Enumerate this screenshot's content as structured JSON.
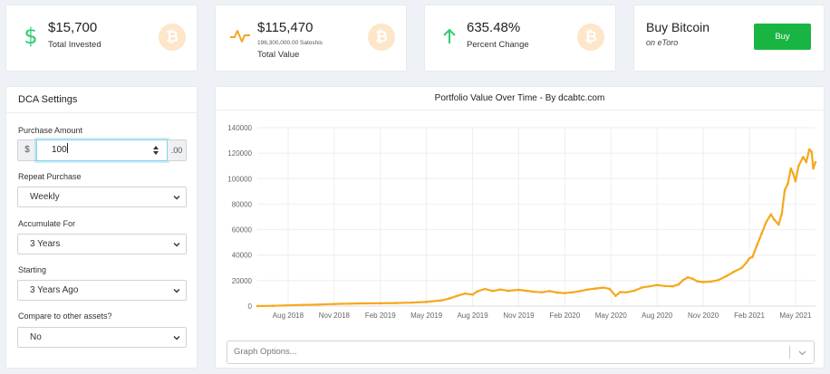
{
  "stats": [
    {
      "value": "$15,700",
      "label": "Total Invested",
      "icon": "dollar-icon",
      "color": "#2ecc71"
    },
    {
      "value": "$115,470",
      "sub": "196,300,000.00 Satoshis",
      "label": "Total Value",
      "icon": "pulse-icon",
      "color": "#f5a623"
    },
    {
      "value": "635.48%",
      "label": "Percent Change",
      "icon": "arrow-up-icon",
      "color": "#2ecc71"
    }
  ],
  "btc_symbol": "₿",
  "buy": {
    "title": "Buy Bitcoin",
    "subtitle": "on eToro",
    "button": "Buy",
    "color": "#19b543"
  },
  "settings": {
    "title": "DCA Settings",
    "purchase_amount_label": "Purchase Amount",
    "currency_prefix": "$",
    "amount": "100",
    "cents_suffix": ".00",
    "repeat_label": "Repeat Purchase",
    "repeat_value": "Weekly",
    "accumulate_label": "Accumulate For",
    "accumulate_value": "3 Years",
    "starting_label": "Starting",
    "starting_value": "3 Years Ago",
    "compare_label": "Compare to other assets?",
    "compare_value": "No"
  },
  "graph_options_placeholder": "Graph Options...",
  "chart_data": {
    "type": "line",
    "title": "Portfolio Value Over Time - By dcabtc.com",
    "ylim": [
      0,
      140000
    ],
    "yticks": [
      0,
      20000,
      40000,
      60000,
      80000,
      100000,
      120000,
      140000
    ],
    "xticks": [
      "Aug 2018",
      "Nov 2018",
      "Feb 2019",
      "May 2019",
      "Aug 2019",
      "Nov 2019",
      "Feb 2020",
      "May 2020",
      "Aug 2020",
      "Nov 2020",
      "Feb 2021",
      "May 2021"
    ],
    "xlim": [
      -2,
      34.3
    ],
    "grid": true,
    "line_color": "#f5a81c",
    "points": [
      [
        -2,
        0
      ],
      [
        -1,
        200
      ],
      [
        0,
        600
      ],
      [
        1,
        900
      ],
      [
        2,
        1200
      ],
      [
        3,
        1600
      ],
      [
        4,
        1900
      ],
      [
        5,
        2100
      ],
      [
        6,
        2200
      ],
      [
        7,
        2400
      ],
      [
        8,
        2700
      ],
      [
        9,
        3300
      ],
      [
        10,
        4500
      ],
      [
        10.5,
        6000
      ],
      [
        11,
        8000
      ],
      [
        11.5,
        9800
      ],
      [
        12,
        9000
      ],
      [
        12.3,
        11500
      ],
      [
        12.8,
        13500
      ],
      [
        13.3,
        11800
      ],
      [
        13.8,
        13000
      ],
      [
        14.3,
        12000
      ],
      [
        15,
        12800
      ],
      [
        15.5,
        12000
      ],
      [
        16,
        11200
      ],
      [
        16.5,
        10800
      ],
      [
        17,
        11800
      ],
      [
        17.5,
        10600
      ],
      [
        18,
        10200
      ],
      [
        18.5,
        10800
      ],
      [
        19,
        11800
      ],
      [
        19.5,
        13000
      ],
      [
        20,
        13800
      ],
      [
        20.5,
        14500
      ],
      [
        20.9,
        13600
      ],
      [
        21.3,
        8000
      ],
      [
        21.6,
        11000
      ],
      [
        22,
        10800
      ],
      [
        22.5,
        12000
      ],
      [
        23,
        14500
      ],
      [
        23.5,
        15500
      ],
      [
        24,
        16500
      ],
      [
        24.5,
        15800
      ],
      [
        25,
        15500
      ],
      [
        25.4,
        17000
      ],
      [
        25.7,
        20500
      ],
      [
        26,
        22500
      ],
      [
        26.3,
        21500
      ],
      [
        26.6,
        19500
      ],
      [
        27,
        18800
      ],
      [
        27.5,
        19200
      ],
      [
        28,
        20500
      ],
      [
        28.5,
        23500
      ],
      [
        29,
        27000
      ],
      [
        29.5,
        30000
      ],
      [
        29.8,
        34000
      ],
      [
        30,
        37500
      ],
      [
        30.2,
        38500
      ],
      [
        30.5,
        48000
      ],
      [
        30.8,
        57000
      ],
      [
        31.1,
        66000
      ],
      [
        31.4,
        72000
      ],
      [
        31.6,
        68000
      ],
      [
        31.9,
        64000
      ],
      [
        32.1,
        72000
      ],
      [
        32.3,
        91000
      ],
      [
        32.5,
        96000
      ],
      [
        32.7,
        108000
      ],
      [
        32.85,
        104000
      ],
      [
        33.0,
        98000
      ],
      [
        33.2,
        110000
      ],
      [
        33.5,
        117000
      ],
      [
        33.7,
        113000
      ],
      [
        33.9,
        123000
      ],
      [
        34.05,
        121000
      ],
      [
        34.15,
        108000
      ],
      [
        34.3,
        113000
      ]
    ]
  }
}
